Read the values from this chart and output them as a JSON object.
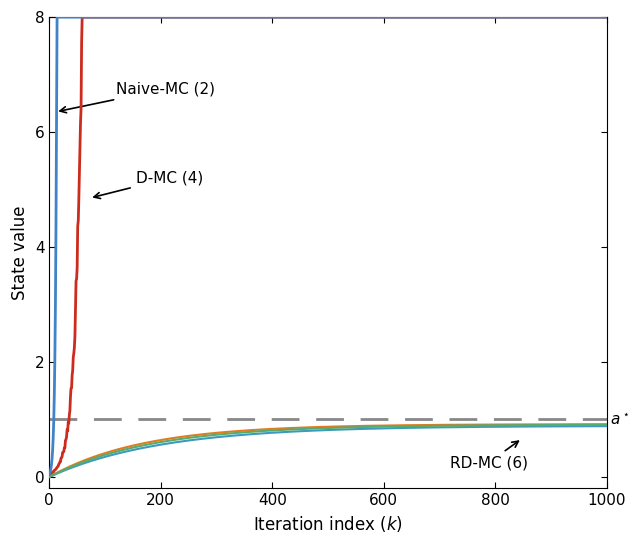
{
  "xlabel": "Iteration index $(k)$",
  "ylabel": "State value",
  "xlim": [
    0,
    1000
  ],
  "ylim": [
    -0.2,
    8
  ],
  "yticks": [
    0,
    2,
    4,
    6,
    8
  ],
  "xticks": [
    0,
    200,
    400,
    600,
    800,
    1000
  ],
  "a_star": 1.0,
  "a_star_label": "$a^\\star$",
  "naive_mc_color": "#3f83c8",
  "dmc_color": "#cc2b1d",
  "rdmc_colors": [
    "#e07b24",
    "#3f83c8",
    "#77AC30"
  ],
  "dashed_color": "#888888",
  "background_color": "#ffffff",
  "annotation_naive": "Naive-MC (2)",
  "annotation_dmc": "D-MC (4)",
  "annotation_rdmc": "RD-MC (6)",
  "naive_diverge_k": 15,
  "dmc_diverge_k": 90
}
